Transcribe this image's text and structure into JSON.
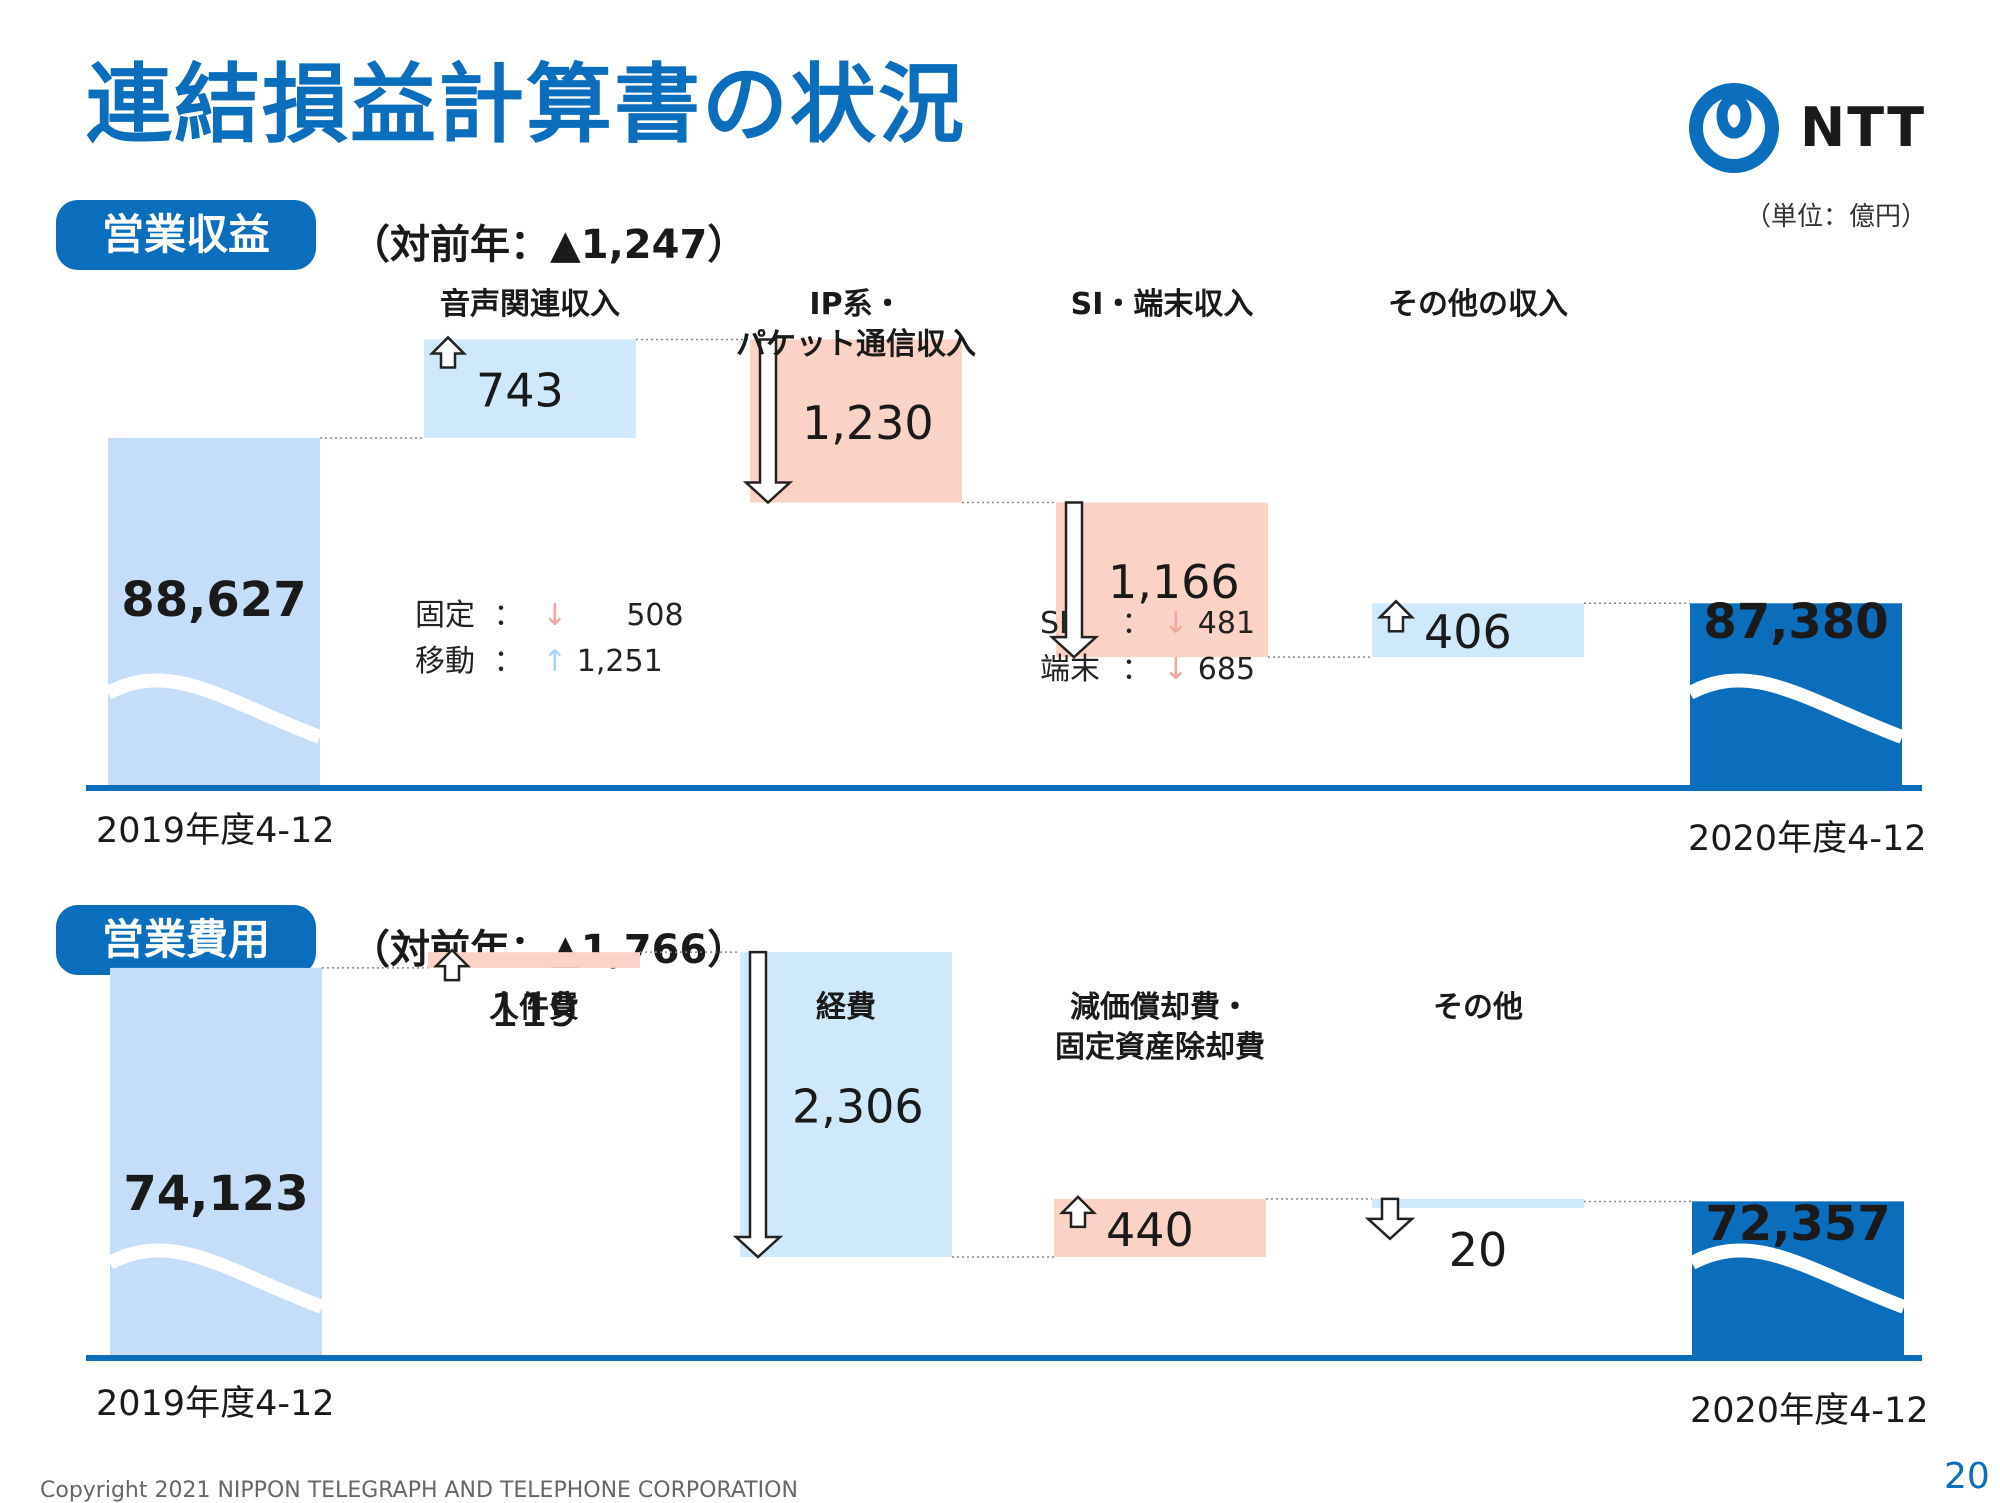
{
  "title": "連結損益計算書の状況",
  "logo": {
    "text": "NTT"
  },
  "unit": "（単位：億円）",
  "colors": {
    "brand": "#0a6ebd",
    "start_bar": "#c5ddf6",
    "end_bar": "#0a6ebd",
    "increase_box": "#cfe9fb",
    "decrease_box": "#fbd3c6"
  },
  "revenue": {
    "pill": "営業収益",
    "change": "（対前年：▲1,247）",
    "start_label": "2019年度4-12",
    "end_label": "2020年度4-12",
    "notes_left": [
      {
        "label": "固定",
        "arrow": "↓",
        "value": "508"
      },
      {
        "label": "移動",
        "arrow": "↑",
        "value": "1,251"
      }
    ],
    "notes_right": [
      {
        "label": "SI",
        "arrow": "↓",
        "value": "481"
      },
      {
        "label": "端末",
        "arrow": "↓",
        "value": "685"
      }
    ]
  },
  "expenses": {
    "pill": "営業費用",
    "change": "（対前年：▲1,766）",
    "start_label": "2019年度4-12",
    "end_label": "2020年度4-12"
  },
  "copyright": "Copyright 2021 NIPPON TELEGRAPH AND TELEPHONE CORPORATION",
  "page_number": "20",
  "chart_data": [
    {
      "type": "bar",
      "subtype": "waterfall",
      "title": "営業収益",
      "start": {
        "label": "2019年度4-12",
        "value": 88627,
        "value_label": "88,627"
      },
      "steps": [
        {
          "category": "音声関連収入",
          "value": 743,
          "value_label": "743",
          "direction": "up",
          "box_color": "#cfe9fb"
        },
        {
          "category": "IP系・\nパケット通信収入",
          "value": -1230,
          "value_label": "1,230",
          "direction": "down",
          "box_color": "#fbd3c6"
        },
        {
          "category": "SI・端末収入",
          "value": -1166,
          "value_label": "1,166",
          "direction": "down",
          "box_color": "#fbd3c6"
        },
        {
          "category": "その他の収入",
          "value": 406,
          "value_label": "406",
          "direction": "up",
          "box_color": "#cfe9fb"
        }
      ],
      "end": {
        "label": "2020年度4-12",
        "value": 87380,
        "value_label": "87,380"
      }
    },
    {
      "type": "bar",
      "subtype": "waterfall",
      "title": "営業費用",
      "start": {
        "label": "2019年度4-12",
        "value": 74123,
        "value_label": "74,123"
      },
      "steps": [
        {
          "category": "人件費",
          "value": 119,
          "value_label": "119",
          "direction": "up",
          "box_color": "#fbd3c6"
        },
        {
          "category": "経費",
          "value": -2306,
          "value_label": "2,306",
          "direction": "down",
          "box_color": "#cfe9fb"
        },
        {
          "category": "減価償却費・\n固定資産除却費",
          "value": 440,
          "value_label": "440",
          "direction": "up",
          "box_color": "#fbd3c6"
        },
        {
          "category": "その他",
          "value": -20,
          "value_label": "20",
          "direction": "down",
          "box_color": "#cfe9fb"
        }
      ],
      "end": {
        "label": "2020年度4-12",
        "value": 72357,
        "value_label": "72,357"
      }
    }
  ]
}
